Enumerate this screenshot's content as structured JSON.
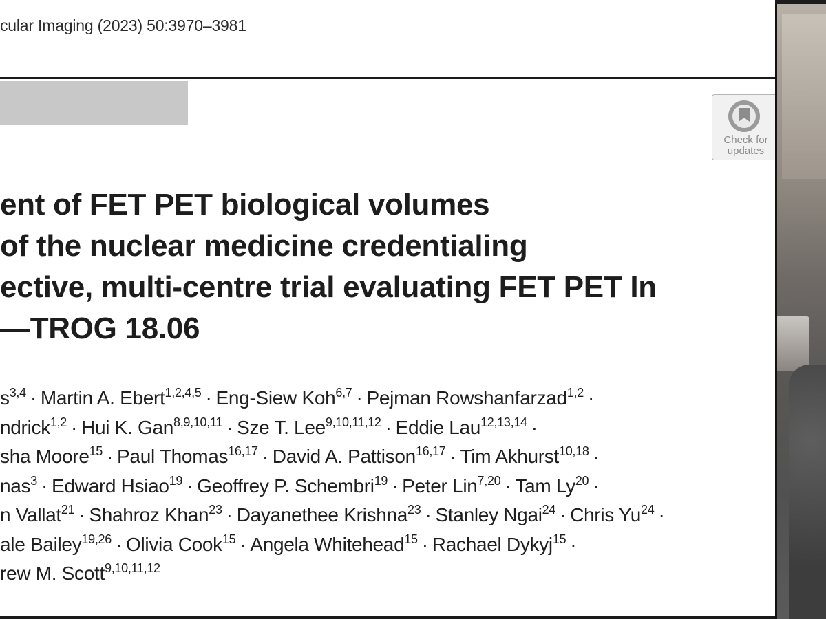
{
  "document": {
    "journal_ref": "cular Imaging (2023) 50:3970–3981",
    "check_badge": {
      "label": "Check for\nupdates",
      "icon": "check-for-updates-icon"
    },
    "title_lines": [
      "ent of FET PET biological volumes",
      "of the nuclear medicine credentialing",
      "ective, multi-centre trial evaluating FET PET In",
      "—TROG 18.06"
    ],
    "author_lines": [
      [
        {
          "name": "s",
          "sup": "3,4"
        },
        {
          "name": "Martin A. Ebert",
          "sup": "1,2,4,5"
        },
        {
          "name": "Eng-Siew Koh",
          "sup": "6,7"
        },
        {
          "name": "Pejman Rowshanfarzad",
          "sup": "1,2",
          "trail": true
        }
      ],
      [
        {
          "name": "ndrick",
          "sup": "1,2"
        },
        {
          "name": "Hui K. Gan",
          "sup": "8,9,10,11"
        },
        {
          "name": "Sze T. Lee",
          "sup": "9,10,11,12"
        },
        {
          "name": "Eddie Lau",
          "sup": "12,13,14",
          "trail": true
        }
      ],
      [
        {
          "name": "sha Moore",
          "sup": "15"
        },
        {
          "name": "Paul Thomas",
          "sup": "16,17"
        },
        {
          "name": "David A. Pattison",
          "sup": "16,17"
        },
        {
          "name": "Tim Akhurst",
          "sup": "10,18",
          "trail": true
        }
      ],
      [
        {
          "name": "nas",
          "sup": "3"
        },
        {
          "name": "Edward Hsiao",
          "sup": "19"
        },
        {
          "name": "Geoffrey P. Schembri",
          "sup": "19"
        },
        {
          "name": "Peter Lin",
          "sup": "7,20"
        },
        {
          "name": "Tam Ly",
          "sup": "20",
          "trail": true
        }
      ],
      [
        {
          "name": "n Vallat",
          "sup": "21"
        },
        {
          "name": "Shahroz Khan",
          "sup": "23"
        },
        {
          "name": "Dayanethee Krishna",
          "sup": "23"
        },
        {
          "name": "Stanley Ngai",
          "sup": "24"
        },
        {
          "name": "Chris Yu",
          "sup": "24",
          "trail": true
        }
      ],
      [
        {
          "name": "ale Bailey",
          "sup": "19,26"
        },
        {
          "name": "Olivia Cook",
          "sup": "15"
        },
        {
          "name": "Angela Whitehead",
          "sup": "15"
        },
        {
          "name": "Rachael Dykyj",
          "sup": "15",
          "trail": true
        }
      ],
      [
        {
          "name": "rew M. Scott",
          "sup": "9,10,11,12"
        }
      ]
    ]
  },
  "colors": {
    "text": "#1f1f1f",
    "rule": "#1a1a1a",
    "grey_bar": "#c8c8c8",
    "badge_bg": "#f1f1f1"
  }
}
